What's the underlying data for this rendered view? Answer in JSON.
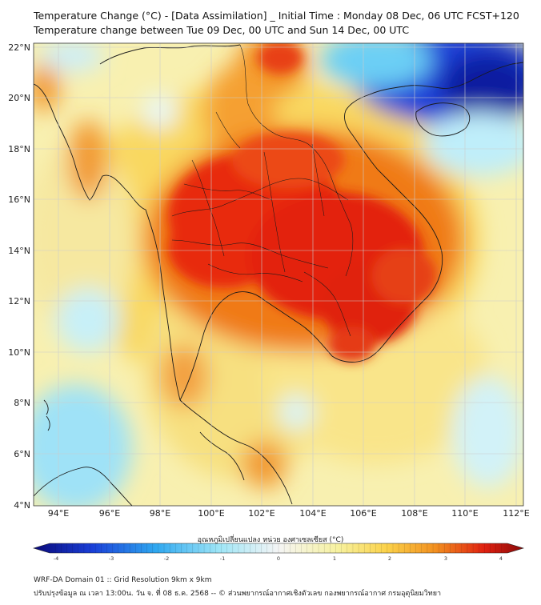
{
  "title_line1": "Temperature Change (°C) - [Data Assimilation] _ Initial Time : Monday 08 Dec, 06 UTC FCST+120",
  "title_line2": "Temperature change between Tue 09 Dec, 00 UTC and Sun 14 Dec, 00 UTC",
  "lat_ticks": [
    "22°N",
    "20°N",
    "18°N",
    "16°N",
    "14°N",
    "12°N",
    "10°N",
    "8°N",
    "6°N",
    "4°N"
  ],
  "lon_ticks": [
    "94°E",
    "96°E",
    "98°E",
    "100°E",
    "102°E",
    "104°E",
    "106°E",
    "108°E",
    "110°E",
    "112°E"
  ],
  "colorbar": {
    "title": "อุณหภูมิเปลี่ยนแปลง หน่วย องศาเซลเซียส (°C)",
    "labels": [
      "-4",
      "-3",
      "-2",
      "-1",
      "0",
      "1",
      "2",
      "3",
      "4"
    ],
    "colors": [
      "#0a0a7a",
      "#1a3fd8",
      "#2fa8f0",
      "#9fe6f7",
      "#f5f5f5",
      "#f7f2a0",
      "#fbd24a",
      "#f29020",
      "#e02010",
      "#8a0a0a"
    ]
  },
  "footer_line1": "WRF-DA Domain 01 :: Grid Resolution 9km x 9km",
  "footer_line2": "ปรับปรุงข้อมูล ณ เวลา 13:00น. วัน จ. ที่ 08 ธ.ค. 2568 -- © ส่วนพยากรณ์อากาศเชิงตัวเลข กองพยากรณ์อากาศ กรมอุตุนิยมวิทยา"
}
